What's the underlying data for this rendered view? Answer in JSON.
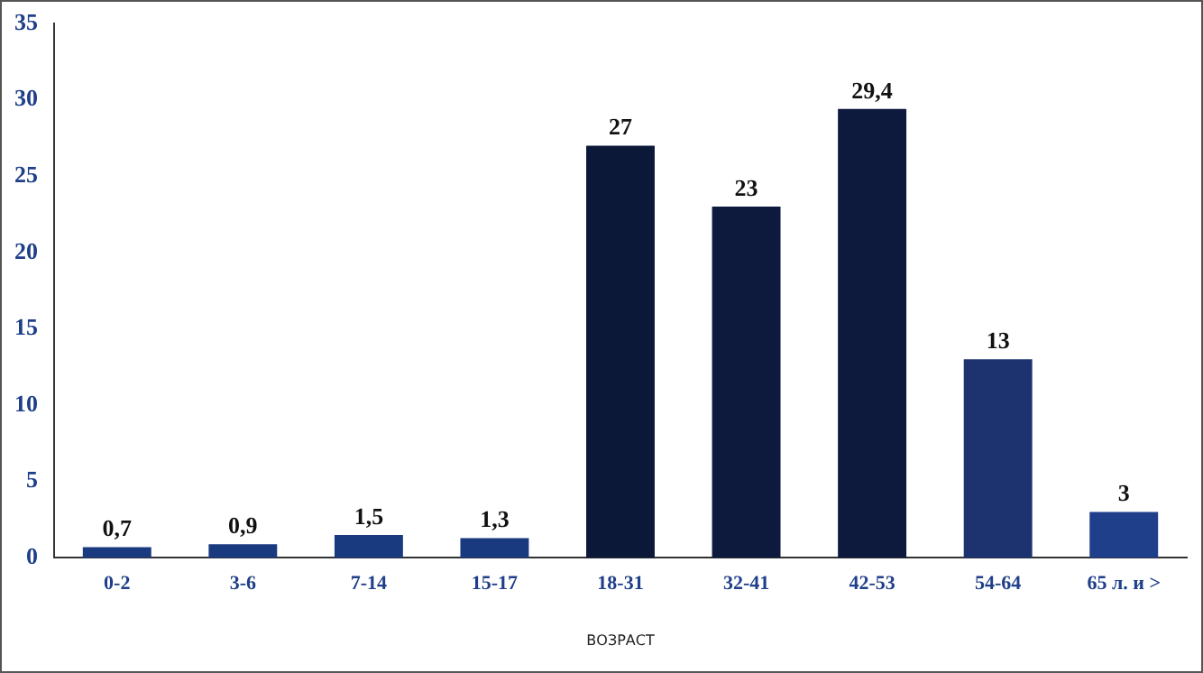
{
  "chart_data": {
    "type": "bar",
    "xlabel": "ВОЗРАСТ",
    "categories": [
      "0-2",
      "3-6",
      "7-14",
      "15-17",
      "18-31",
      "32-41",
      "42-53",
      "54-64",
      "65 л. и >"
    ],
    "values": [
      0.7,
      0.9,
      1.5,
      1.3,
      27,
      23,
      29.4,
      13,
      3
    ],
    "colors": [
      "#1a3a80",
      "#1a3a80",
      "#1a3a80",
      "#1a3a80",
      "#0b1838",
      "#0d1a3e",
      "#0d1a3e",
      "#1c3370",
      "#1f3f8a"
    ],
    "value_labels": [
      "0,7",
      "0,9",
      "1,5",
      "1,3",
      "27",
      "23",
      "29,4",
      "13",
      "3"
    ],
    "ylim": [
      0,
      35
    ],
    "yticks": [
      0,
      5,
      10,
      15,
      20,
      25,
      30,
      35
    ],
    "grid": false,
    "legend": false
  }
}
